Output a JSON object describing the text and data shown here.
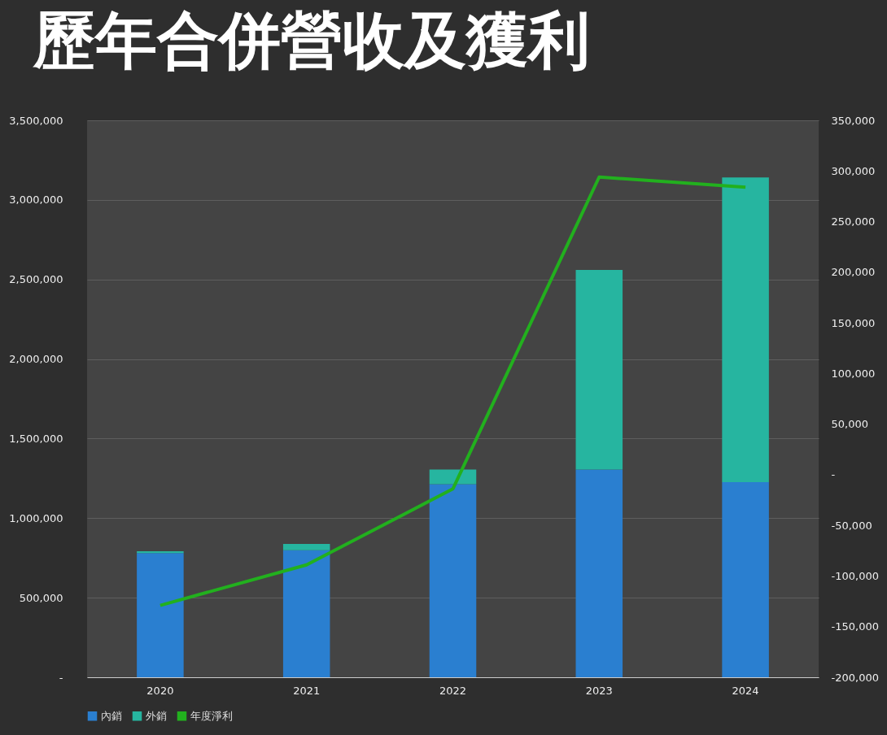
{
  "chart_data": {
    "type": "bar",
    "title": "歷年合併營收及獲利",
    "categories": [
      "2020",
      "2021",
      "2022",
      "2023",
      "2024"
    ],
    "stacked": true,
    "series": [
      {
        "name": "內銷",
        "color": "#2a7fd0",
        "values": [
          780000,
          798000,
          1214000,
          1306000,
          1226000
        ]
      },
      {
        "name": "外銷",
        "color": "#26b5a0",
        "values": [
          12000,
          40000,
          92000,
          1254000,
          1915000
        ]
      },
      {
        "name": "年度淨利",
        "type": "line",
        "axis": "y2",
        "color": "#22b01e",
        "values": [
          -129000,
          -89000,
          -14000,
          294000,
          284000
        ]
      }
    ],
    "ylim": [
      0,
      3500000
    ],
    "yticks": [
      {
        "value": 0,
        "label": "-"
      },
      {
        "value": 500000,
        "label": "500,000"
      },
      {
        "value": 1000000,
        "label": "1,000,000"
      },
      {
        "value": 1500000,
        "label": "1,500,000"
      },
      {
        "value": 2000000,
        "label": "2,000,000"
      },
      {
        "value": 2500000,
        "label": "2,500,000"
      },
      {
        "value": 3000000,
        "label": "3,000,000"
      },
      {
        "value": 3500000,
        "label": "3,500,000"
      }
    ],
    "y2lim": [
      -200000,
      350000
    ],
    "y2ticks": [
      {
        "value": -200000,
        "label": "-200,000"
      },
      {
        "value": -150000,
        "label": "-150,000"
      },
      {
        "value": -100000,
        "label": "-100,000"
      },
      {
        "value": -50000,
        "label": "-50,000"
      },
      {
        "value": 0,
        "label": "-"
      },
      {
        "value": 50000,
        "label": "50,000"
      },
      {
        "value": 100000,
        "label": "100,000"
      },
      {
        "value": 150000,
        "label": "150,000"
      },
      {
        "value": 200000,
        "label": "200,000"
      },
      {
        "value": 250000,
        "label": "250,000"
      },
      {
        "value": 300000,
        "label": "300,000"
      },
      {
        "value": 350000,
        "label": "350,000"
      }
    ],
    "line_style": "solid",
    "grid": "y",
    "legend": "bottom"
  }
}
